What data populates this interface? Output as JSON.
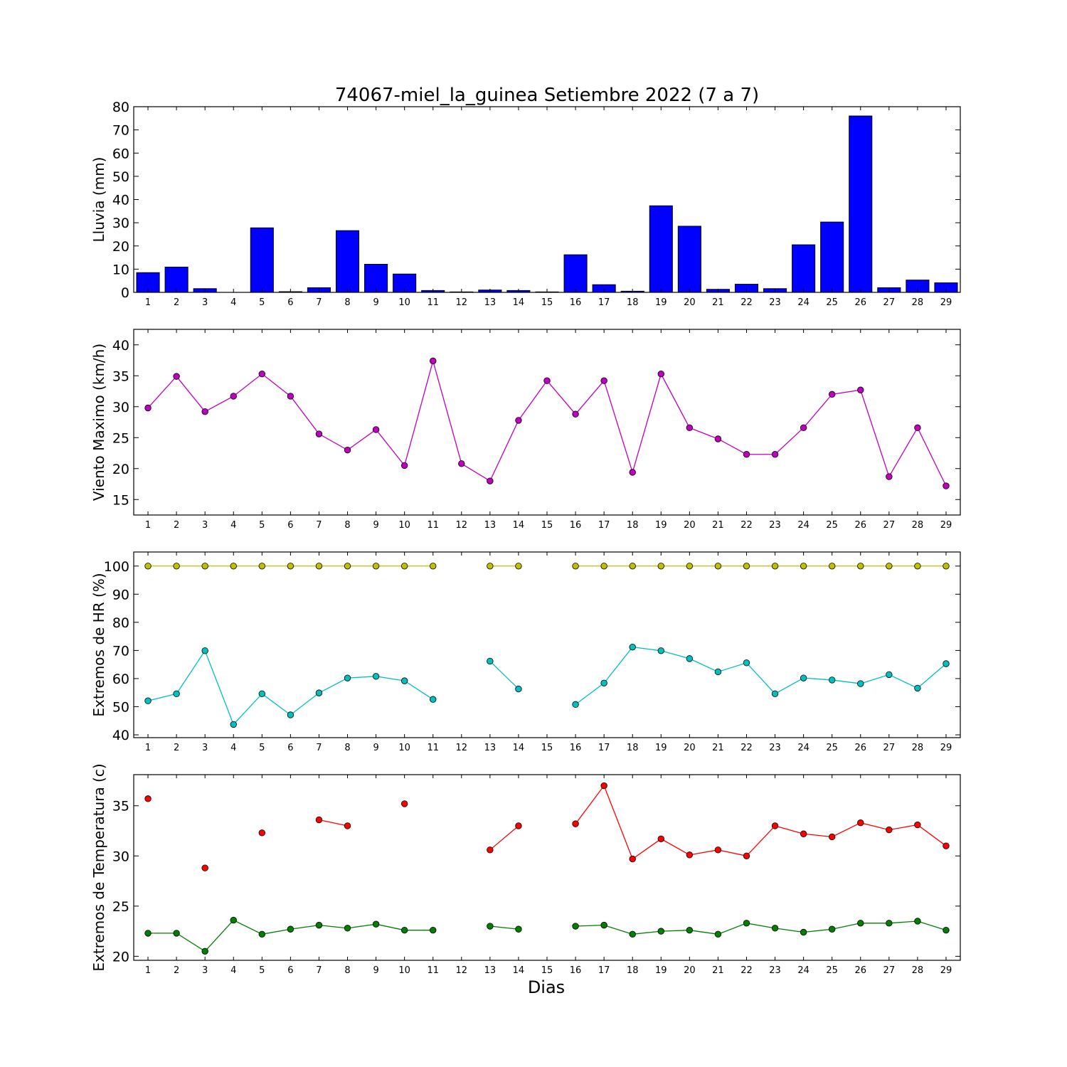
{
  "title": "74067-miel_la_guinea Setiembre 2022  (7 a 7)",
  "xlabel": "Dias",
  "chart_data": [
    {
      "type": "bar",
      "ylabel": "Lluvia (mm)",
      "ylim": [
        0,
        80
      ],
      "yticks": [
        0,
        10,
        20,
        30,
        40,
        50,
        60,
        70,
        80
      ],
      "x": [
        1,
        2,
        3,
        4,
        5,
        6,
        7,
        8,
        9,
        10,
        11,
        12,
        13,
        14,
        15,
        16,
        17,
        18,
        19,
        20,
        21,
        22,
        23,
        24,
        25,
        26,
        27,
        28,
        29
      ],
      "series": [
        {
          "color": "#0000ff",
          "values": [
            8.5,
            10.9,
            1.6,
            0,
            27.8,
            0.3,
            2.0,
            26.6,
            12.1,
            7.9,
            0.8,
            0.2,
            1.0,
            0.8,
            0.2,
            16.2,
            3.3,
            0.5,
            37.3,
            28.5,
            1.3,
            3.5,
            1.6,
            20.5,
            30.3,
            76.0,
            2.0,
            5.3,
            4.1
          ]
        }
      ]
    },
    {
      "type": "line",
      "ylabel": "Viento Maximo (km/h)",
      "ylim": [
        12.5,
        42.5
      ],
      "yticks": [
        15,
        20,
        25,
        30,
        35,
        40
      ],
      "x": [
        1,
        2,
        3,
        4,
        5,
        6,
        7,
        8,
        9,
        10,
        11,
        12,
        13,
        14,
        15,
        16,
        17,
        18,
        19,
        20,
        21,
        22,
        23,
        24,
        25,
        26,
        27,
        28,
        29
      ],
      "series": [
        {
          "color": "#bf00bf",
          "values": [
            29.8,
            34.9,
            29.2,
            31.7,
            35.3,
            31.7,
            25.6,
            23.0,
            26.3,
            20.5,
            37.4,
            20.8,
            18.0,
            27.8,
            34.2,
            28.8,
            34.2,
            19.4,
            35.3,
            26.6,
            24.8,
            22.3,
            22.3,
            26.6,
            32.0,
            32.7,
            18.7,
            26.6,
            17.2
          ]
        }
      ]
    },
    {
      "type": "line",
      "ylabel": "Extremos de HR (%)",
      "ylim": [
        39,
        105
      ],
      "yticks": [
        40,
        50,
        60,
        70,
        80,
        90,
        100
      ],
      "x": [
        1,
        2,
        3,
        4,
        5,
        6,
        7,
        8,
        9,
        10,
        11,
        12,
        13,
        14,
        15,
        16,
        17,
        18,
        19,
        20,
        21,
        22,
        23,
        24,
        25,
        26,
        27,
        28,
        29
      ],
      "series": [
        {
          "color": "#bfbf00",
          "values": [
            100,
            100,
            100,
            100,
            100,
            100,
            100,
            100,
            100,
            100,
            100,
            null,
            100,
            100,
            null,
            100,
            100,
            100,
            100,
            100,
            100,
            100,
            100,
            100,
            100,
            100,
            100,
            100,
            100
          ]
        },
        {
          "color": "#00bfbf",
          "values": [
            52.1,
            54.6,
            69.9,
            43.7,
            54.6,
            47.1,
            54.9,
            60.2,
            60.8,
            59.2,
            52.6,
            null,
            66.2,
            56.3,
            null,
            50.8,
            58.4,
            71.2,
            69.9,
            67.1,
            62.4,
            65.6,
            54.6,
            60.2,
            59.5,
            58.2,
            61.4,
            56.6,
            65.3
          ]
        }
      ]
    },
    {
      "type": "line",
      "ylabel": "Extremos de Temperatura (c)",
      "ylim": [
        19.6,
        38.1
      ],
      "yticks": [
        20,
        25,
        30,
        35
      ],
      "x": [
        1,
        2,
        3,
        4,
        5,
        6,
        7,
        8,
        9,
        10,
        11,
        12,
        13,
        14,
        15,
        16,
        17,
        18,
        19,
        20,
        21,
        22,
        23,
        24,
        25,
        26,
        27,
        28,
        29
      ],
      "series": [
        {
          "color": "#ff0000",
          "values": [
            35.7,
            null,
            28.8,
            null,
            32.3,
            null,
            33.6,
            33.0,
            null,
            35.2,
            null,
            null,
            30.6,
            33.0,
            null,
            33.2,
            37.0,
            29.7,
            31.7,
            30.1,
            30.6,
            30.0,
            33.0,
            32.2,
            31.9,
            33.3,
            32.6,
            33.1,
            31.0
          ]
        },
        {
          "color": "#007f00",
          "values": [
            22.3,
            22.3,
            20.5,
            23.6,
            22.2,
            22.7,
            23.1,
            22.8,
            23.2,
            22.6,
            22.6,
            null,
            23.0,
            22.7,
            null,
            23.0,
            23.1,
            22.2,
            22.5,
            22.6,
            22.2,
            23.3,
            22.8,
            22.4,
            22.7,
            23.3,
            23.3,
            23.5,
            22.6
          ]
        }
      ]
    }
  ]
}
